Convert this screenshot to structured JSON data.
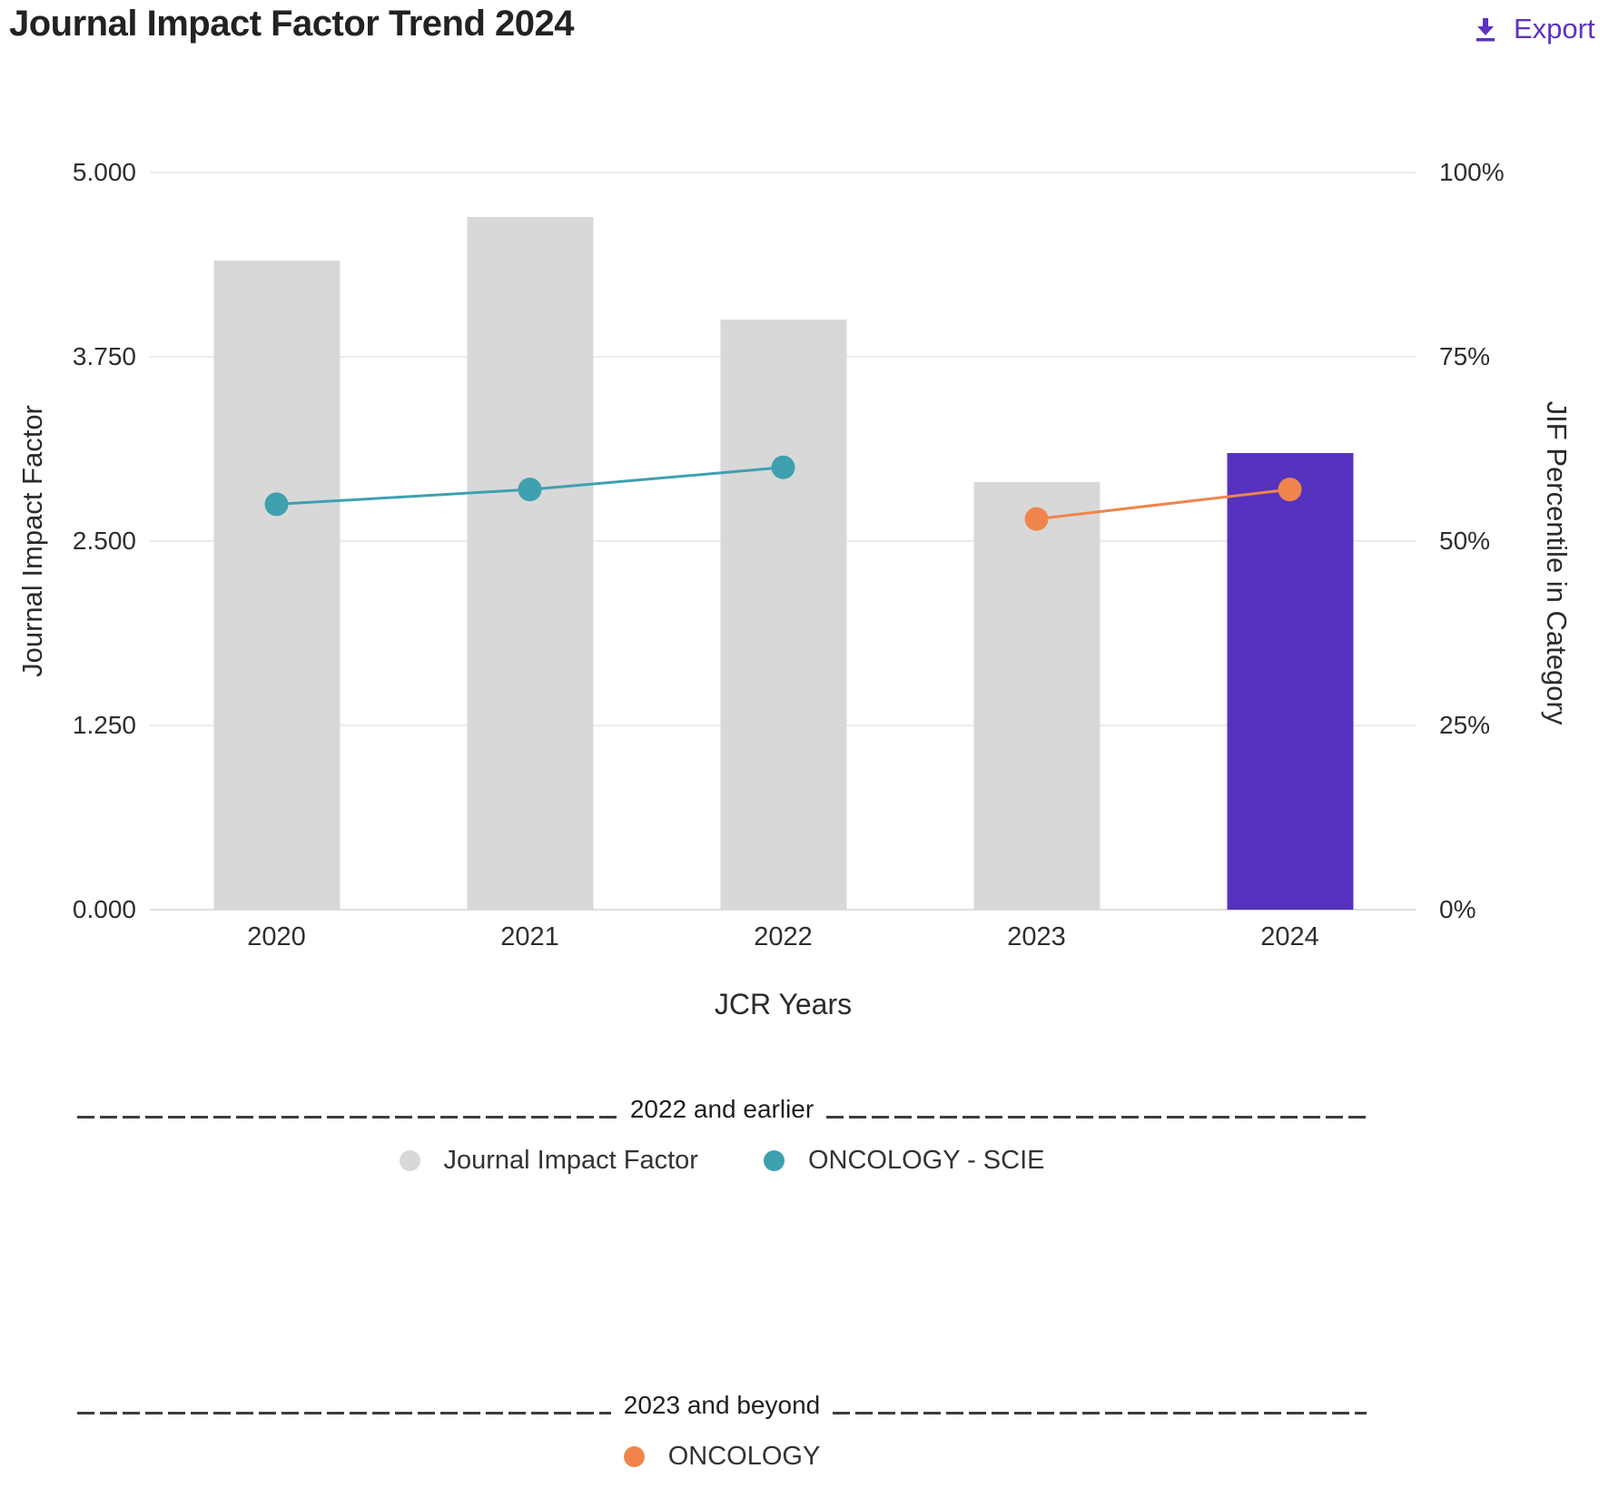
{
  "header": {
    "title": "Journal Impact Factor Trend 2024",
    "export_label": "Export",
    "export_icon": "download-icon",
    "accent_color": "#5E33BF"
  },
  "chart_data": {
    "type": "bar+line combo",
    "categories": [
      "2020",
      "2021",
      "2022",
      "2023",
      "2024"
    ],
    "x_axis": {
      "label": "JCR Years"
    },
    "left_axis": {
      "label": "Journal Impact Factor",
      "range": [
        0,
        5
      ],
      "ticks": [
        "0.000",
        "1.250",
        "2.500",
        "3.750",
        "5.000"
      ]
    },
    "right_axis": {
      "label": "JIF Percentile in Category",
      "range": [
        0,
        100
      ],
      "ticks": [
        "0%",
        "25%",
        "50%",
        "75%",
        "100%"
      ]
    },
    "grid": "horizontal gridlines on",
    "legend_position": "below chart, two year-range sections",
    "series": [
      {
        "name": "Journal Impact Factor",
        "type": "bar",
        "axis": "left",
        "values": [
          4.4,
          4.7,
          4.0,
          2.9,
          3.1
        ],
        "bar_colors": [
          "#D8D8D8",
          "#D8D8D8",
          "#D8D8D8",
          "#D8D8D8",
          "#5533BF"
        ]
      },
      {
        "name": "ONCOLOGY - SCIE",
        "type": "line",
        "axis": "right",
        "values": [
          55,
          57,
          60,
          null,
          null
        ],
        "color": "#3FA0AF"
      },
      {
        "name": "ONCOLOGY",
        "type": "line",
        "axis": "right",
        "values": [
          null,
          null,
          null,
          53,
          57
        ],
        "color": "#F0854C"
      }
    ]
  },
  "legend_sections": [
    {
      "title": "2022 and earlier",
      "items": [
        {
          "label": "Journal Impact Factor",
          "color": "#D8D8D8"
        },
        {
          "label": "ONCOLOGY - SCIE",
          "color": "#3FA0AF"
        }
      ]
    },
    {
      "title": "2023 and beyond",
      "items": [
        {
          "label": "ONCOLOGY",
          "color": "#F0854C"
        }
      ]
    }
  ]
}
